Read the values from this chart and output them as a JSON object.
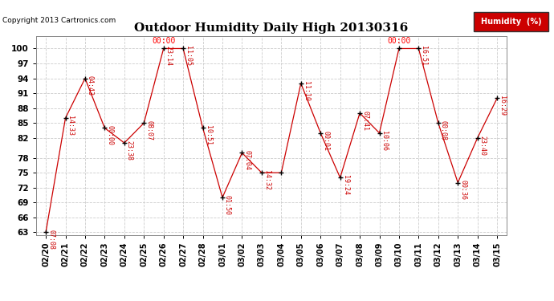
{
  "title": "Outdoor Humidity Daily High 20130316",
  "copyright": "Copyright 2013 Cartronics.com",
  "background_color": "#ffffff",
  "line_color": "#cc0000",
  "marker_color": "#000000",
  "grid_color": "#cccccc",
  "ylim_min": 63,
  "ylim_max": 100,
  "yticks": [
    63,
    66,
    69,
    72,
    75,
    78,
    82,
    85,
    88,
    91,
    94,
    97,
    100
  ],
  "dates": [
    "02/20",
    "02/21",
    "02/22",
    "02/23",
    "02/24",
    "02/25",
    "02/26",
    "02/27",
    "02/28",
    "03/01",
    "03/02",
    "03/03",
    "03/04",
    "03/05",
    "03/06",
    "03/07",
    "03/08",
    "03/09",
    "03/10",
    "03/11",
    "03/12",
    "03/13",
    "03/14",
    "03/15"
  ],
  "values": [
    63,
    86,
    94,
    84,
    81,
    85,
    100,
    100,
    84,
    70,
    79,
    75,
    75,
    93,
    83,
    74,
    87,
    83,
    100,
    100,
    85,
    73,
    82,
    90
  ],
  "time_labels": [
    "07:08",
    "14:33",
    "04:43",
    "00:00",
    "23:38",
    "08:07",
    "23:14",
    "11:05",
    "10:51",
    "01:50",
    "07:04",
    "14:32",
    "",
    "11:10",
    "00:01",
    "19:24",
    "07:41",
    "10:06",
    "",
    "16:51",
    "00:08",
    "00:36",
    "23:40",
    "16:29"
  ],
  "peak_label_indices": [
    6,
    18
  ],
  "peak_labels": [
    "00:00",
    "00:00"
  ],
  "legend_label": "Humidity  (%)",
  "legend_bg": "#cc0000",
  "legend_text_color": "#ffffff"
}
